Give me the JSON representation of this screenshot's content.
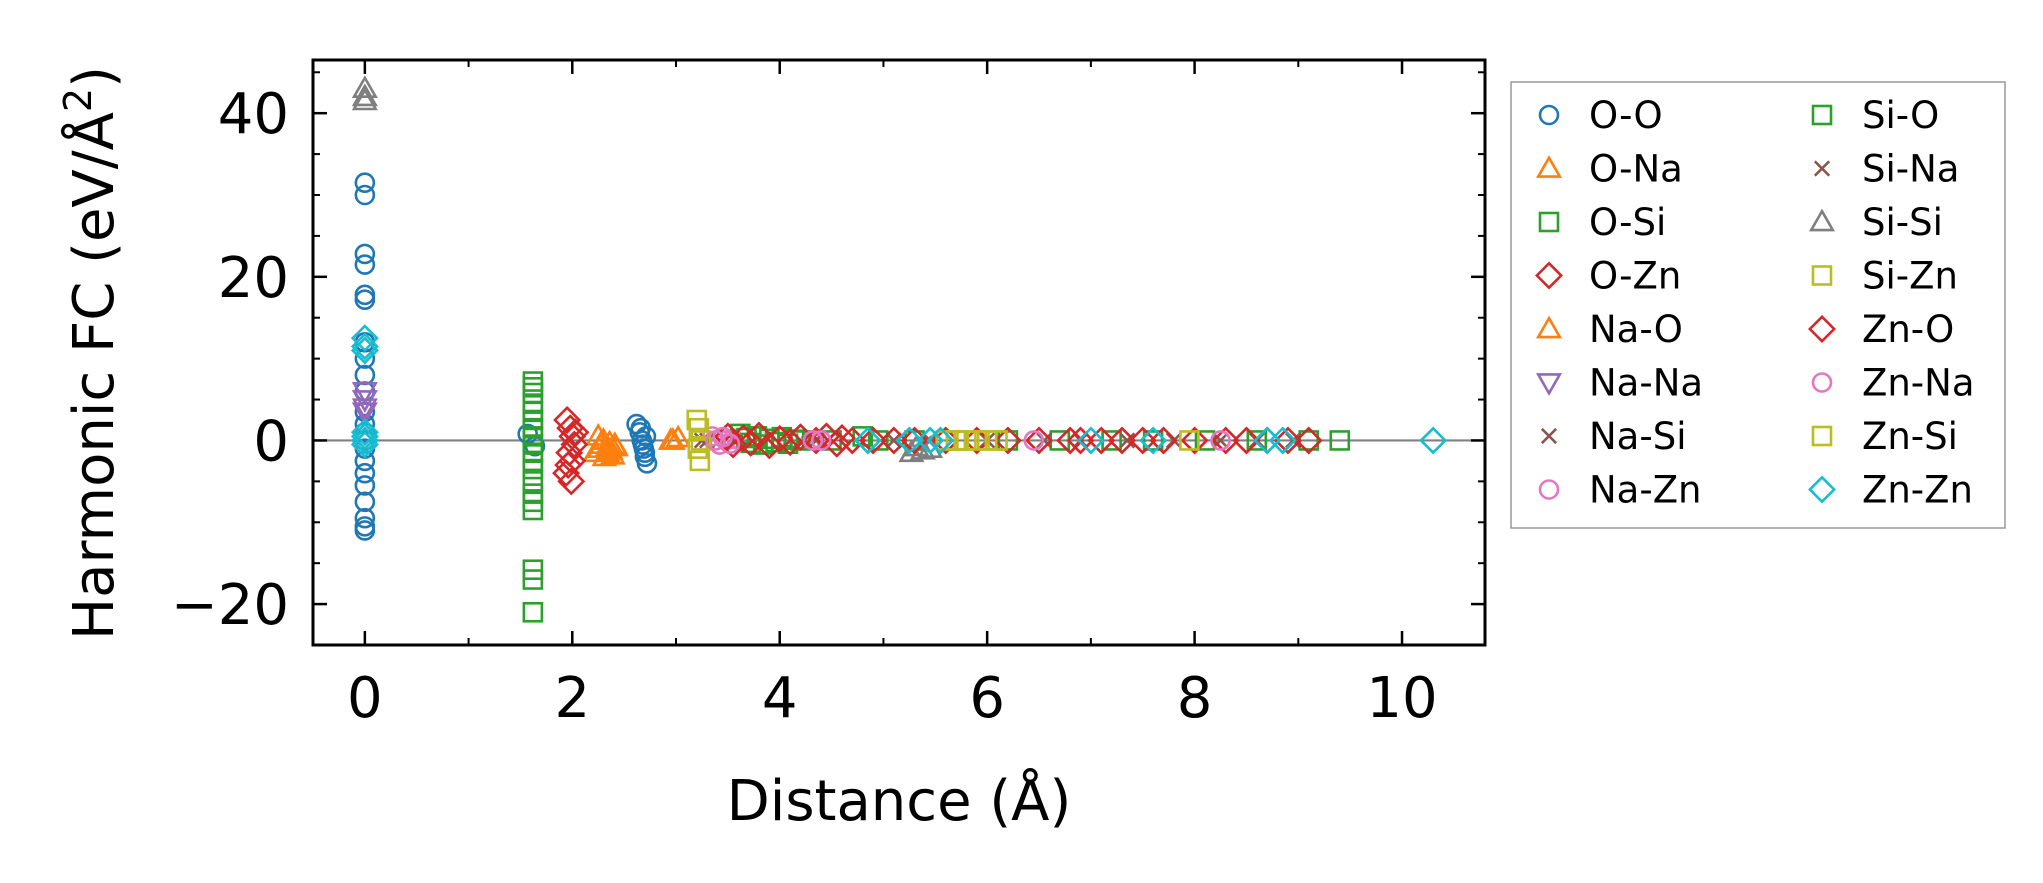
{
  "chart_data": {
    "type": "scatter",
    "title": "",
    "xlabel": "Distance (Å)",
    "ylabel_main": "Harmonic FC (eV/Å",
    "ylabel_sup": "2",
    "ylabel_close": ")",
    "xlim": [
      -0.5,
      10.8
    ],
    "ylim": [
      -25,
      46.5
    ],
    "xticks": [
      0,
      2,
      4,
      6,
      8,
      10
    ],
    "xtick_labels": [
      "0",
      "2",
      "4",
      "6",
      "8",
      "10"
    ],
    "yticks": [
      -20,
      0,
      20,
      40
    ],
    "ytick_labels": [
      "−20",
      "0",
      "20",
      "40"
    ],
    "zero_line": 0,
    "legend_position": "outside-right",
    "series": [
      {
        "name": "O-O",
        "marker": "circle",
        "color": "#1f77b4",
        "x": [
          0,
          0,
          0,
          0,
          0,
          0,
          0,
          0,
          0,
          0,
          0,
          0,
          0,
          0,
          0,
          0,
          0,
          0,
          0,
          0,
          0,
          0,
          1.57,
          1.64,
          2.62,
          2.65,
          2.67,
          2.69,
          2.7,
          2.72,
          2.66,
          2.68,
          2.71,
          2.7
        ],
        "y": [
          31.5,
          30,
          22.8,
          21.5,
          17.8,
          17.2,
          12,
          10,
          8,
          6,
          3.5,
          2,
          -1,
          -2.5,
          -4,
          -5.5,
          -7.5,
          -10.5,
          -11,
          -9.5,
          1,
          0,
          0.8,
          -0.7,
          2,
          1,
          0,
          -1,
          -2,
          -2.8,
          1.5,
          -0.5,
          0.5,
          -1.5
        ]
      },
      {
        "name": "O-Na",
        "marker": "triangle-up",
        "color": "#ff7f0e",
        "x": [
          2.22,
          2.27,
          2.3,
          2.33,
          2.36,
          2.39,
          2.42,
          2.25,
          2.31,
          2.37,
          2.97
        ],
        "y": [
          -1.5,
          -0.5,
          0,
          -1,
          -0.3,
          -1.8,
          -0.8,
          0.5,
          -2,
          -1.2,
          0
        ]
      },
      {
        "name": "O-Si",
        "marker": "square",
        "color": "#2ca02c",
        "x": [
          1.62,
          1.62,
          1.62,
          1.62,
          1.62,
          1.62,
          1.62,
          1.62,
          1.62,
          1.62,
          1.62,
          1.62,
          1.62,
          1.62,
          1.62,
          1.62,
          1.62,
          1.62,
          1.62
        ],
        "y": [
          7.2,
          6.5,
          5.8,
          4.5,
          3.5,
          2.5,
          1.5,
          0.5,
          -0.5,
          -1.5,
          -2.5,
          -3.5,
          -5,
          -6.5,
          -7.5,
          -8.5,
          -15.8,
          -17,
          -21
        ]
      },
      {
        "name": "O-Zn",
        "marker": "diamond",
        "color": "#d62728",
        "x": [
          1.95,
          1.98,
          2.0,
          2.02,
          1.97,
          2.0,
          1.94,
          1.99,
          2.03,
          1.96
        ],
        "y": [
          2.5,
          1.5,
          0.5,
          -0.5,
          -1.5,
          -2.5,
          -4,
          -5,
          1,
          -3
        ]
      },
      {
        "name": "Na-O",
        "marker": "triangle-up",
        "color": "#ff7f0e",
        "x": [
          2.26,
          2.34,
          2.41,
          2.95,
          3.02
        ],
        "y": [
          -1,
          -1.5,
          -0.5,
          0,
          0.3
        ]
      },
      {
        "name": "Na-Na",
        "marker": "triangle-down",
        "color": "#9467bd",
        "x": [
          0,
          0,
          0,
          0
        ],
        "y": [
          6,
          5,
          4,
          3.5
        ]
      },
      {
        "name": "Na-Si",
        "marker": "x",
        "color": "#8c564b",
        "x": [
          3.3,
          4.2,
          5.1,
          6.0,
          6.9,
          7.8,
          8.6
        ],
        "y": [
          0,
          0,
          0,
          0,
          0,
          0,
          0
        ]
      },
      {
        "name": "Na-Zn",
        "marker": "circle",
        "color": "#e377c2",
        "x": [
          3.35,
          3.42,
          3.48,
          3.55,
          4.3,
          4.36
        ],
        "y": [
          0.5,
          -0.5,
          0,
          0.2,
          0,
          0
        ]
      },
      {
        "name": "Si-O",
        "marker": "square",
        "color": "#2ca02c",
        "x": [
          3.62,
          3.68,
          3.72,
          3.78,
          3.84,
          3.9,
          3.96,
          4.02,
          4.08,
          4.14,
          4.2,
          4.5,
          4.8,
          4.95,
          5.3,
          5.7,
          6.2,
          6.7,
          7.2,
          7.6,
          8.1,
          8.6,
          9.1,
          9.4
        ],
        "y": [
          0.8,
          0.3,
          -0.3,
          0.5,
          -0.5,
          0.2,
          -0.2,
          0.4,
          -0.4,
          0.1,
          0,
          0,
          0.5,
          0,
          0,
          0,
          0,
          0,
          0,
          0,
          0,
          0,
          0,
          0
        ]
      },
      {
        "name": "Si-Na",
        "marker": "x",
        "color": "#8c564b",
        "x": [
          3.25,
          4.35,
          5.45,
          6.55,
          7.35,
          8.25,
          8.95
        ],
        "y": [
          0,
          0,
          0,
          0,
          0,
          0,
          0
        ]
      },
      {
        "name": "Si-Si",
        "marker": "triangle-up",
        "color": "#7f7f7f",
        "x": [
          0,
          0,
          0,
          5.27,
          5.32,
          5.38,
          5.45
        ],
        "y": [
          43,
          42,
          41.5,
          -1.5,
          -0.8,
          -1.2,
          -1
        ]
      },
      {
        "name": "Si-Zn",
        "marker": "square",
        "color": "#bcbd22",
        "x": [
          3.2,
          3.22,
          3.24,
          3.21,
          3.23
        ],
        "y": [
          2.5,
          1.5,
          0,
          -1,
          -2.5
        ]
      },
      {
        "name": "Zn-O",
        "marker": "diamond",
        "color": "#d62728",
        "x": [
          3.5,
          3.55,
          3.65,
          3.72,
          3.8,
          3.9,
          4.0,
          4.1,
          4.2,
          4.35,
          4.45,
          4.55,
          4.6,
          4.7,
          4.9,
          5.1,
          5.3,
          5.6,
          5.9,
          6.2,
          6.5,
          6.8,
          6.9,
          7.1,
          7.3,
          7.5,
          7.7,
          8.0,
          8.3,
          8.5,
          8.7,
          8.9,
          9.1
        ],
        "y": [
          0.5,
          -0.5,
          0.3,
          -0.3,
          0.6,
          -0.6,
          0.2,
          -0.2,
          0.4,
          0,
          0.5,
          -0.4,
          0.3,
          0,
          0,
          0,
          0,
          0,
          0,
          0,
          0,
          0,
          0,
          0,
          0,
          0,
          0,
          0,
          0,
          0,
          0,
          0,
          0
        ]
      },
      {
        "name": "Zn-Na",
        "marker": "circle",
        "color": "#e377c2",
        "x": [
          3.38,
          3.45,
          3.52,
          4.32,
          4.4,
          6.45,
          8.25
        ],
        "y": [
          0,
          0.4,
          -0.4,
          0,
          0,
          0,
          0
        ]
      },
      {
        "name": "Zn-Si",
        "marker": "square",
        "color": "#bcbd22",
        "x": [
          5.6,
          5.7,
          5.8,
          5.9,
          6.0,
          6.1,
          7.95
        ],
        "y": [
          0,
          0,
          0,
          0,
          0,
          0,
          0
        ]
      },
      {
        "name": "Zn-Zn",
        "marker": "diamond",
        "color": "#17becf",
        "x": [
          0,
          0,
          0,
          0,
          0,
          0,
          0,
          4.85,
          5.25,
          5.45,
          5.55,
          7.0,
          7.6,
          8.7,
          8.85,
          10.3
        ],
        "y": [
          12.5,
          11.5,
          11,
          1,
          0,
          -0.5,
          0.5,
          0,
          0,
          0,
          0,
          0,
          0,
          0,
          0,
          0
        ]
      }
    ]
  }
}
